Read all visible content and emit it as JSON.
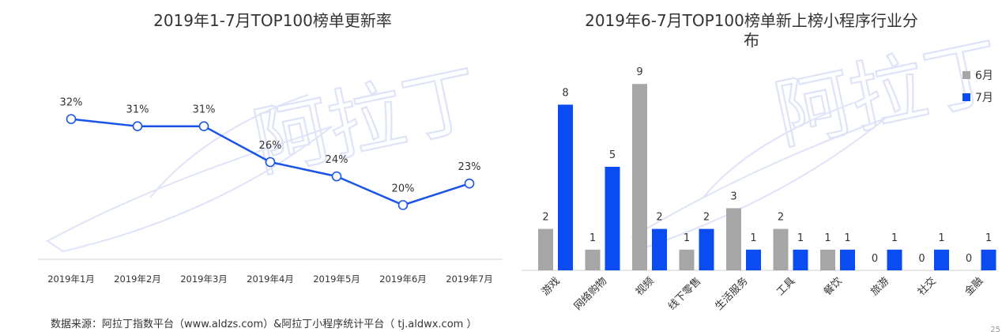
{
  "chart_data": [
    {
      "type": "line",
      "title": "2019年1-7月TOP100榜单更新率",
      "categories": [
        "2019年1月",
        "2019年2月",
        "2019年3月",
        "2019年4月",
        "2019年5月",
        "2019年6月",
        "2019年7月"
      ],
      "values": [
        32,
        31,
        31,
        26,
        24,
        20,
        23
      ],
      "data_labels": [
        "32%",
        "31%",
        "31%",
        "26%",
        "24%",
        "20%",
        "23%"
      ],
      "unit": "%",
      "ylim": [
        10,
        42
      ],
      "grid": false,
      "color": "#1a54e6"
    },
    {
      "type": "bar",
      "title_lines": [
        "2019年6-7月TOP100榜单新上榜小程序行业分",
        "布"
      ],
      "categories": [
        "游戏",
        "网络购物",
        "视频",
        "线下零售",
        "生活服务",
        "工具",
        "餐饮",
        "旅游",
        "社交",
        "金融"
      ],
      "series": [
        {
          "name": "6月",
          "values": [
            2,
            1,
            9,
            1,
            3,
            2,
            1,
            0,
            0,
            0
          ],
          "color": "#a6a6a6"
        },
        {
          "name": "7月",
          "values": [
            8,
            5,
            2,
            2,
            1,
            1,
            1,
            1,
            1,
            1
          ],
          "color": "#0a4cf2"
        }
      ],
      "ylim": [
        0,
        10
      ],
      "legend": "top-right",
      "grid": false
    }
  ],
  "footer": {
    "source": "数据来源：阿拉丁指数平台（www.aldzs.com）&阿拉丁小程序统计平台（ tj.aldwx.com ）",
    "page_number": "25"
  },
  "watermark": {
    "text": "阿拉丁"
  }
}
